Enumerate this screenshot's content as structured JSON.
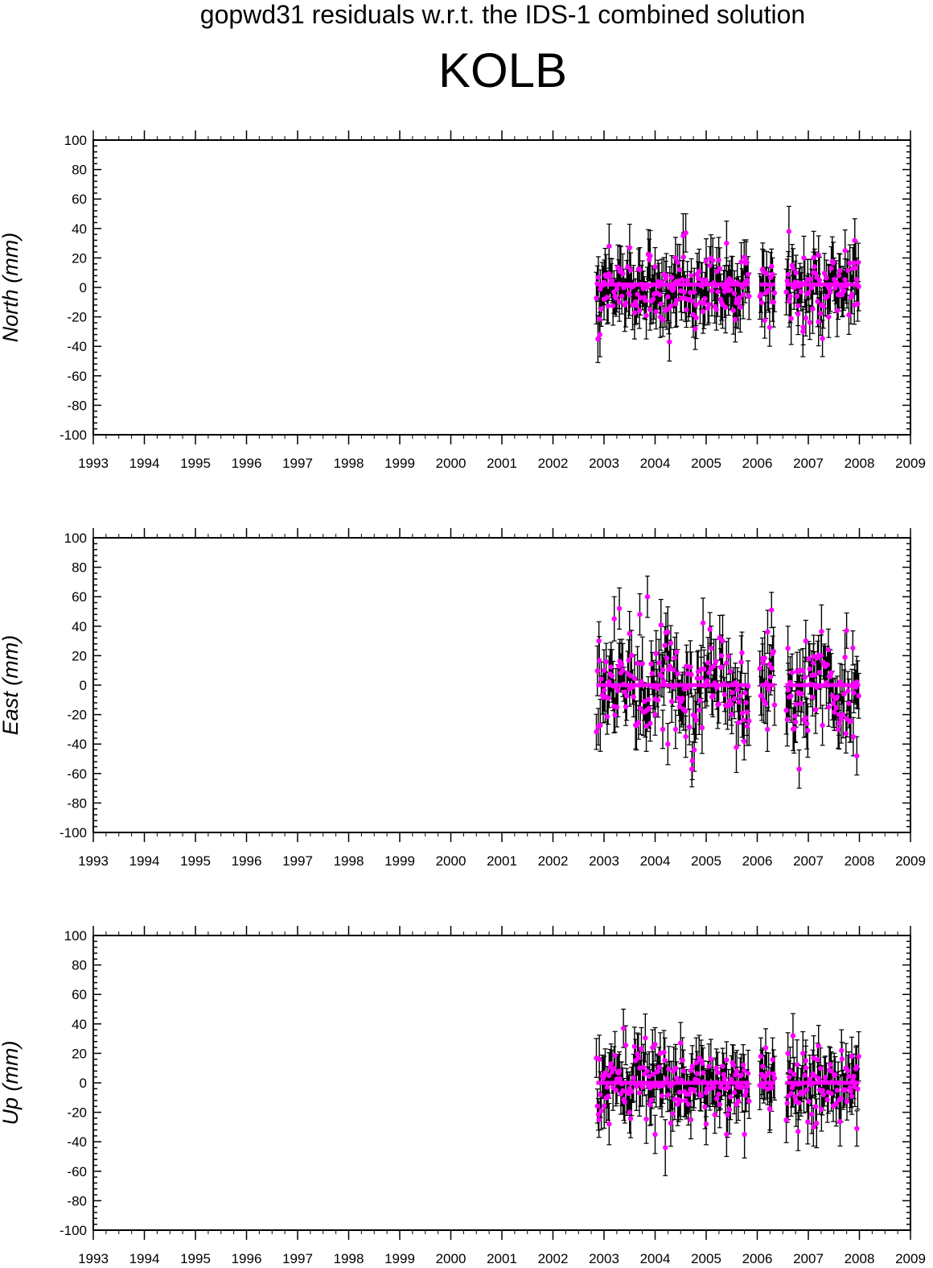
{
  "page": {
    "title": "gopwd31 residuals w.r.t. the IDS-1 combined solution",
    "station": "KOLB"
  },
  "colors": {
    "points": "#ff00ff",
    "errorbars": "#000000",
    "axes": "#000000"
  },
  "chart_data": [
    {
      "type": "scatter",
      "component": "north",
      "ylabel": "North (mm)",
      "xlim": [
        1993,
        2009
      ],
      "ylim": [
        -100,
        100
      ],
      "xticks": [
        1993,
        1994,
        1995,
        1996,
        1997,
        1998,
        1999,
        2000,
        2001,
        2002,
        2003,
        2004,
        2005,
        2006,
        2007,
        2008,
        2009
      ],
      "yticks": [
        -100,
        -80,
        -60,
        -40,
        -20,
        0,
        20,
        40,
        60,
        80,
        100
      ],
      "data_span": [
        2002.85,
        2008.0
      ],
      "gaps": [
        [
          2005.85,
          2006.05
        ],
        [
          2006.35,
          2006.55
        ]
      ],
      "reference_line": 2,
      "scatter_sd": 11,
      "errorbar_halfwidth_mm": 14,
      "series": [
        {
          "points": [
            [
              2002.88,
              -35,
              16
            ],
            [
              2002.92,
              -32,
              15
            ],
            [
              2003.0,
              -8,
              14
            ],
            [
              2003.1,
              28,
              15
            ],
            [
              2003.3,
              -10,
              13
            ],
            [
              2003.5,
              -5,
              14
            ],
            [
              2003.7,
              12,
              15
            ],
            [
              2003.9,
              -15,
              14
            ],
            [
              2004.0,
              14,
              13
            ],
            [
              2004.1,
              -20,
              14
            ],
            [
              2004.22,
              8,
              15
            ],
            [
              2004.28,
              -37,
              13
            ],
            [
              2004.4,
              20,
              14
            ],
            [
              2004.55,
              35,
              15
            ],
            [
              2004.6,
              37,
              13
            ],
            [
              2004.8,
              -12,
              14
            ],
            [
              2005.0,
              18,
              15
            ],
            [
              2005.2,
              -15,
              14
            ],
            [
              2005.4,
              30,
              15
            ],
            [
              2005.6,
              -8,
              14
            ],
            [
              2005.78,
              18,
              13
            ],
            [
              2006.1,
              12,
              14
            ],
            [
              2006.3,
              -10,
              13
            ],
            [
              2006.62,
              38,
              17
            ],
            [
              2006.8,
              -18,
              14
            ],
            [
              2006.9,
              -27,
              12
            ],
            [
              2007.1,
              10,
              14
            ],
            [
              2007.2,
              22,
              13
            ],
            [
              2007.4,
              -20,
              14
            ],
            [
              2007.6,
              8,
              15
            ],
            [
              2007.72,
              25,
              14
            ],
            [
              2007.9,
              -12,
              13
            ],
            [
              2007.98,
              17,
              13
            ]
          ]
        }
      ]
    },
    {
      "type": "scatter",
      "component": "east",
      "ylabel": "East (mm)",
      "xlim": [
        1993,
        2009
      ],
      "ylim": [
        -100,
        100
      ],
      "xticks": [
        1993,
        1994,
        1995,
        1996,
        1997,
        1998,
        1999,
        2000,
        2001,
        2002,
        2003,
        2004,
        2005,
        2006,
        2007,
        2008,
        2009
      ],
      "yticks": [
        -100,
        -80,
        -60,
        -40,
        -20,
        0,
        20,
        40,
        60,
        80,
        100
      ],
      "data_span": [
        2002.85,
        2008.0
      ],
      "gaps": [
        [
          2005.85,
          2006.05
        ],
        [
          2006.35,
          2006.55
        ]
      ],
      "reference_line": 0,
      "scatter_sd": 16,
      "errorbar_halfwidth_mm": 14,
      "series": [
        {
          "points": [
            [
              2002.9,
              30,
              13
            ],
            [
              2003.0,
              10,
              14
            ],
            [
              2003.2,
              45,
              15
            ],
            [
              2003.3,
              52,
              14
            ],
            [
              2003.5,
              35,
              15
            ],
            [
              2003.7,
              48,
              14
            ],
            [
              2003.85,
              60,
              14
            ],
            [
              2004.0,
              -20,
              14
            ],
            [
              2004.15,
              -30,
              13
            ],
            [
              2004.25,
              -40,
              14
            ],
            [
              2004.4,
              -30,
              13
            ],
            [
              2004.6,
              -35,
              14
            ],
            [
              2004.72,
              -57,
              12
            ],
            [
              2004.9,
              5,
              14
            ],
            [
              2005.1,
              25,
              15
            ],
            [
              2005.3,
              20,
              14
            ],
            [
              2005.5,
              -20,
              13
            ],
            [
              2005.7,
              22,
              14
            ],
            [
              2005.8,
              -28,
              13
            ],
            [
              2006.1,
              18,
              14
            ],
            [
              2006.2,
              -30,
              15
            ],
            [
              2006.28,
              51,
              12
            ],
            [
              2006.6,
              25,
              15
            ],
            [
              2006.75,
              -25,
              14
            ],
            [
              2006.82,
              -57,
              13
            ],
            [
              2006.95,
              30,
              14
            ],
            [
              2007.1,
              15,
              13
            ],
            [
              2007.25,
              20,
              14
            ],
            [
              2007.4,
              -15,
              13
            ],
            [
              2007.6,
              -20,
              14
            ],
            [
              2007.75,
              37,
              12
            ],
            [
              2007.88,
              -35,
              13
            ],
            [
              2007.95,
              -48,
              13
            ]
          ]
        }
      ]
    },
    {
      "type": "scatter",
      "component": "up",
      "ylabel": "Up (mm)",
      "xlim": [
        1993,
        2009
      ],
      "ylim": [
        -100,
        100
      ],
      "xticks": [
        1993,
        1994,
        1995,
        1996,
        1997,
        1998,
        1999,
        2000,
        2001,
        2002,
        2003,
        2004,
        2005,
        2006,
        2007,
        2008,
        2009
      ],
      "yticks": [
        -100,
        -80,
        -60,
        -40,
        -20,
        0,
        20,
        40,
        60,
        80,
        100
      ],
      "data_span": [
        2002.85,
        2008.0
      ],
      "gaps": [
        [
          2005.85,
          2006.05
        ],
        [
          2006.35,
          2006.55
        ]
      ],
      "reference_line": 0,
      "scatter_sd": 11,
      "errorbar_halfwidth_mm": 13,
      "series": [
        {
          "points": [
            [
              2002.9,
              -25,
              12
            ],
            [
              2003.0,
              5,
              13
            ],
            [
              2003.1,
              -28,
              14
            ],
            [
              2003.3,
              8,
              13
            ],
            [
              2003.38,
              37,
              13
            ],
            [
              2003.5,
              -20,
              14
            ],
            [
              2003.7,
              10,
              13
            ],
            [
              2003.9,
              -15,
              14
            ],
            [
              2003.95,
              24,
              12
            ],
            [
              2004.0,
              -35,
              13
            ],
            [
              2004.1,
              20,
              14
            ],
            [
              2004.2,
              -44,
              19
            ],
            [
              2004.4,
              10,
              13
            ],
            [
              2004.5,
              27,
              14
            ],
            [
              2004.7,
              -25,
              13
            ],
            [
              2004.9,
              15,
              14
            ],
            [
              2005.0,
              -28,
              14
            ],
            [
              2005.2,
              10,
              13
            ],
            [
              2005.4,
              -35,
              15
            ],
            [
              2005.6,
              8,
              14
            ],
            [
              2005.75,
              -35,
              16
            ],
            [
              2006.1,
              5,
              13
            ],
            [
              2006.25,
              -18,
              14
            ],
            [
              2006.6,
              20,
              14
            ],
            [
              2006.7,
              32,
              15
            ],
            [
              2006.8,
              -33,
              13
            ],
            [
              2006.95,
              15,
              14
            ],
            [
              2007.1,
              -30,
              13
            ],
            [
              2007.2,
              25,
              14
            ],
            [
              2007.45,
              8,
              13
            ],
            [
              2007.65,
              22,
              14
            ],
            [
              2007.85,
              18,
              13
            ],
            [
              2007.95,
              -31,
              12
            ]
          ]
        }
      ]
    }
  ]
}
